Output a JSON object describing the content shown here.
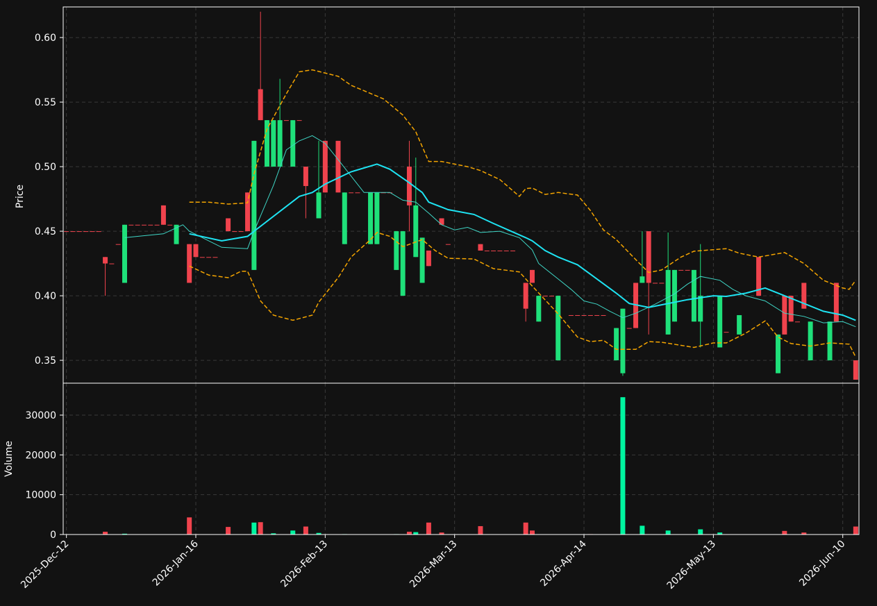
{
  "chart_data": {
    "type": "candlestick",
    "ylabel": "Price",
    "volume_label": "Volume",
    "xlim": [
      -0.5,
      122.5
    ],
    "xticks": [
      {
        "value": 0,
        "label": "2025-Dec-12"
      },
      {
        "value": 20,
        "label": "2026-Jan-16"
      },
      {
        "value": 40,
        "label": "2026-Feb-13"
      },
      {
        "value": 60,
        "label": "2026-Mar-13"
      },
      {
        "value": 80,
        "label": "2026-Apr-14"
      },
      {
        "value": 100,
        "label": "2026-May-13"
      },
      {
        "value": 120,
        "label": "2026-Jun-10"
      }
    ],
    "ylim": [
      0.3323,
      0.6237
    ],
    "yticks": [
      0.35,
      {
        "value": 0.4,
        "label": "0.40"
      },
      0.45,
      {
        "value": 0.5,
        "label": "0.50"
      },
      0.55,
      {
        "value": 0.6,
        "label": "0.60"
      }
    ],
    "volume_lim": [
      0,
      38023
    ],
    "volume_ticks": [
      0,
      10000,
      20000,
      30000
    ],
    "grid": true,
    "up_color": "#1fe07a",
    "down_color": "#f0434d",
    "volume_up_color": "#00f5a0",
    "volume_down_color": "#f0434d",
    "x": [
      0,
      1,
      2,
      3,
      4,
      5,
      6,
      7,
      8,
      9,
      10,
      11,
      12,
      13,
      14,
      15,
      16,
      17,
      19,
      20,
      21,
      22,
      23,
      25,
      26,
      27,
      28,
      29,
      30,
      31,
      32,
      33,
      34,
      35,
      36,
      37,
      39,
      40,
      42,
      43,
      44,
      45,
      47,
      48,
      49,
      50,
      51,
      52,
      53,
      54,
      55,
      56,
      58,
      59,
      64,
      65,
      66,
      67,
      68,
      69,
      71,
      72,
      73,
      74,
      75,
      76,
      78,
      79,
      80,
      81,
      82,
      83,
      85,
      86,
      87,
      88,
      89,
      90,
      91,
      92,
      93,
      94,
      95,
      96,
      97,
      98,
      101,
      102,
      104,
      107,
      110,
      111,
      112,
      113,
      114,
      115,
      118,
      119,
      122
    ],
    "open": [
      0.45,
      0.45,
      0.45,
      0.45,
      0.45,
      0.45,
      0.43,
      0.425,
      0.44,
      0.41,
      0.455,
      0.455,
      0.455,
      0.455,
      0.455,
      0.47,
      0.455,
      0.44,
      0.44,
      0.44,
      0.43,
      0.43,
      0.43,
      0.46,
      0.45,
      0.45,
      0.48,
      0.42,
      0.56,
      0.5,
      0.5,
      0.5,
      0.536,
      0.5,
      0.536,
      0.5,
      0.46,
      0.52,
      0.52,
      0.44,
      0.48,
      0.48,
      0.44,
      0.44,
      0.48,
      0.48,
      0.42,
      0.4,
      0.5,
      0.43,
      0.41,
      0.435,
      0.46,
      0.44,
      0.44,
      0.435,
      0.435,
      0.435,
      0.435,
      0.435,
      0.41,
      0.42,
      0.38,
      0.4,
      0.4,
      0.35,
      0.385,
      0.385,
      0.385,
      0.385,
      0.385,
      0.385,
      0.35,
      0.34,
      0.375,
      0.41,
      0.41,
      0.45,
      0.41,
      0.41,
      0.37,
      0.38,
      0.42,
      0.42,
      0.38,
      0.38,
      0.36,
      0.372,
      0.37,
      0.43,
      0.34,
      0.4,
      0.4,
      0.38,
      0.41,
      0.35,
      0.35,
      0.41,
      0.35
    ],
    "high": [
      0.45,
      0.45,
      0.45,
      0.45,
      0.45,
      0.45,
      0.43,
      0.425,
      0.44,
      0.455,
      0.455,
      0.455,
      0.455,
      0.455,
      0.455,
      0.47,
      0.455,
      0.455,
      0.44,
      0.44,
      0.43,
      0.43,
      0.43,
      0.46,
      0.45,
      0.45,
      0.48,
      0.52,
      0.62,
      0.536,
      0.536,
      0.568,
      0.536,
      0.536,
      0.536,
      0.5,
      0.52,
      0.52,
      0.52,
      0.48,
      0.48,
      0.48,
      0.48,
      0.48,
      0.48,
      0.48,
      0.45,
      0.45,
      0.52,
      0.507,
      0.445,
      0.435,
      0.46,
      0.44,
      0.44,
      0.435,
      0.435,
      0.435,
      0.435,
      0.435,
      0.41,
      0.42,
      0.4,
      0.4,
      0.4,
      0.4,
      0.385,
      0.385,
      0.385,
      0.385,
      0.385,
      0.385,
      0.375,
      0.39,
      0.375,
      0.41,
      0.45,
      0.45,
      0.41,
      0.41,
      0.449,
      0.42,
      0.42,
      0.42,
      0.42,
      0.44,
      0.4,
      0.372,
      0.385,
      0.43,
      0.37,
      0.4,
      0.4,
      0.38,
      0.41,
      0.38,
      0.38,
      0.41,
      0.35
    ],
    "low": [
      0.45,
      0.45,
      0.45,
      0.45,
      0.45,
      0.45,
      0.4,
      0.425,
      0.44,
      0.41,
      0.455,
      0.455,
      0.455,
      0.455,
      0.455,
      0.455,
      0.455,
      0.44,
      0.41,
      0.43,
      0.43,
      0.43,
      0.43,
      0.45,
      0.45,
      0.45,
      0.45,
      0.42,
      0.536,
      0.5,
      0.5,
      0.5,
      0.536,
      0.5,
      0.536,
      0.46,
      0.46,
      0.48,
      0.48,
      0.44,
      0.48,
      0.48,
      0.44,
      0.44,
      0.48,
      0.48,
      0.42,
      0.4,
      0.45,
      0.43,
      0.41,
      0.423,
      0.455,
      0.44,
      0.435,
      0.435,
      0.435,
      0.435,
      0.435,
      0.435,
      0.38,
      0.41,
      0.38,
      0.4,
      0.4,
      0.35,
      0.385,
      0.385,
      0.385,
      0.385,
      0.385,
      0.385,
      0.35,
      0.338,
      0.375,
      0.375,
      0.41,
      0.37,
      0.41,
      0.41,
      0.37,
      0.38,
      0.42,
      0.42,
      0.38,
      0.36,
      0.36,
      0.372,
      0.37,
      0.4,
      0.34,
      0.37,
      0.38,
      0.38,
      0.39,
      0.35,
      0.35,
      0.38,
      0.335
    ],
    "close": [
      0.45,
      0.45,
      0.45,
      0.45,
      0.45,
      0.45,
      0.425,
      0.425,
      0.44,
      0.455,
      0.455,
      0.455,
      0.455,
      0.455,
      0.455,
      0.455,
      0.455,
      0.455,
      0.41,
      0.43,
      0.43,
      0.43,
      0.43,
      0.45,
      0.45,
      0.45,
      0.45,
      0.52,
      0.536,
      0.536,
      0.536,
      0.536,
      0.536,
      0.536,
      0.536,
      0.485,
      0.48,
      0.48,
      0.48,
      0.48,
      0.48,
      0.48,
      0.48,
      0.48,
      0.48,
      0.48,
      0.45,
      0.45,
      0.47,
      0.47,
      0.445,
      0.423,
      0.455,
      0.44,
      0.435,
      0.435,
      0.435,
      0.435,
      0.435,
      0.435,
      0.39,
      0.41,
      0.4,
      0.4,
      0.4,
      0.4,
      0.385,
      0.385,
      0.385,
      0.385,
      0.385,
      0.385,
      0.375,
      0.39,
      0.375,
      0.375,
      0.415,
      0.41,
      0.41,
      0.41,
      0.42,
      0.42,
      0.42,
      0.42,
      0.42,
      0.4,
      0.4,
      0.372,
      0.385,
      0.4,
      0.37,
      0.37,
      0.38,
      0.38,
      0.39,
      0.38,
      0.38,
      0.38,
      0.335
    ],
    "volume": [
      0,
      0,
      0,
      0,
      0,
      0,
      700,
      0,
      0,
      200,
      0,
      0,
      0,
      0,
      0,
      0,
      0,
      0,
      4300,
      100,
      0,
      0,
      0,
      1900,
      0,
      0,
      0,
      3000,
      3100,
      0,
      300,
      0,
      0,
      1000,
      0,
      2000,
      400,
      0,
      0,
      100,
      0,
      0,
      0,
      0,
      0,
      0,
      100,
      0,
      700,
      600,
      0,
      3000,
      500,
      0,
      2100,
      0,
      0,
      0,
      0,
      0,
      3000,
      1000,
      0,
      0,
      0,
      0,
      0,
      0,
      0,
      100,
      0,
      0,
      0,
      34500,
      0,
      0,
      2200,
      0,
      0,
      0,
      1000,
      0,
      0,
      0,
      0,
      1300,
      500,
      0,
      0,
      0,
      0,
      900,
      0,
      0,
      500,
      0,
      0,
      0,
      2000
    ],
    "overlays": [
      {
        "color": "#f5a500",
        "style": "dashed",
        "width": 1.5,
        "x": [
          19,
          22,
          25,
          28,
          29,
          31,
          34,
          36,
          38,
          42,
          44,
          49,
          52,
          54,
          56,
          58,
          62,
          64,
          67,
          70,
          71,
          72,
          74,
          76,
          79,
          81,
          83,
          85,
          88,
          90,
          92,
          95,
          97,
          102,
          104,
          107,
          111,
          114,
          117,
          120,
          121,
          122
        ],
        "values": [
          0.4725,
          0.4725,
          0.471,
          0.472,
          0.4945,
          0.529,
          0.5565,
          0.5735,
          0.575,
          0.57,
          0.563,
          0.5525,
          0.54,
          0.527,
          0.504,
          0.504,
          0.5,
          0.497,
          0.49,
          0.477,
          0.483,
          0.4835,
          0.4785,
          0.48,
          0.478,
          0.466,
          0.451,
          0.4435,
          0.428,
          0.418,
          0.42,
          0.43,
          0.4345,
          0.4365,
          0.433,
          0.43,
          0.4335,
          0.425,
          0.412,
          0.406,
          0.405,
          0.412
        ]
      },
      {
        "color": "#f5a500",
        "style": "dashed",
        "width": 1.5,
        "x": [
          19,
          22,
          25,
          27,
          28,
          30,
          32,
          35,
          38,
          39,
          42,
          44,
          47,
          48,
          50,
          52,
          55,
          57,
          59,
          63,
          66,
          70,
          72,
          76,
          79,
          81,
          83,
          85,
          88,
          90,
          92,
          97,
          100,
          102,
          105,
          108,
          110,
          112,
          115,
          118,
          121,
          122
        ],
        "values": [
          0.423,
          0.416,
          0.414,
          0.419,
          0.419,
          0.396,
          0.385,
          0.381,
          0.385,
          0.395,
          0.414,
          0.43,
          0.4435,
          0.449,
          0.446,
          0.438,
          0.4435,
          0.435,
          0.429,
          0.4285,
          0.421,
          0.4185,
          0.4075,
          0.386,
          0.368,
          0.3645,
          0.3655,
          0.3585,
          0.3585,
          0.3645,
          0.364,
          0.36,
          0.3635,
          0.3635,
          0.371,
          0.3805,
          0.368,
          0.363,
          0.361,
          0.3635,
          0.3625,
          0.3525
        ]
      },
      {
        "color": "#3fd6c6",
        "style": "solid",
        "width": 1,
        "x": [
          9,
          15,
          18,
          19,
          24,
          28,
          29,
          32,
          34,
          36,
          38,
          40,
          42,
          46,
          50,
          52,
          54,
          56,
          58,
          60,
          62,
          64,
          67,
          70,
          72,
          73,
          76,
          78,
          80,
          82,
          84,
          86,
          88,
          91,
          94,
          96,
          98,
          101,
          103,
          105,
          108,
          111,
          114,
          117,
          120,
          122
        ],
        "values": [
          0.445,
          0.448,
          0.455,
          0.45,
          0.4375,
          0.4365,
          0.45,
          0.4855,
          0.513,
          0.52,
          0.524,
          0.518,
          0.5055,
          0.48,
          0.48,
          0.474,
          0.4725,
          0.464,
          0.455,
          0.451,
          0.453,
          0.449,
          0.45,
          0.445,
          0.4355,
          0.425,
          0.413,
          0.405,
          0.396,
          0.3935,
          0.388,
          0.383,
          0.3865,
          0.3935,
          0.4015,
          0.409,
          0.415,
          0.412,
          0.405,
          0.4,
          0.396,
          0.3865,
          0.384,
          0.379,
          0.38,
          0.376
        ]
      },
      {
        "color": "#1ee3f2",
        "style": "solid",
        "width": 2,
        "x": [
          19,
          24,
          28,
          29,
          36,
          38,
          40,
          44,
          48,
          50,
          53,
          55,
          56,
          59,
          63,
          66,
          71,
          72,
          74,
          76,
          79,
          82,
          85,
          87,
          90,
          92,
          96,
          100,
          102,
          105,
          108,
          111,
          114,
          117,
          120,
          122
        ],
        "values": [
          0.448,
          0.4425,
          0.446,
          0.45,
          0.477,
          0.48,
          0.4865,
          0.496,
          0.502,
          0.498,
          0.4875,
          0.48,
          0.4725,
          0.4667,
          0.463,
          0.456,
          0.445,
          0.4425,
          0.435,
          0.43,
          0.424,
          0.413,
          0.402,
          0.394,
          0.391,
          0.393,
          0.397,
          0.4,
          0.3995,
          0.402,
          0.406,
          0.4,
          0.394,
          0.388,
          0.385,
          0.381
        ]
      }
    ]
  }
}
